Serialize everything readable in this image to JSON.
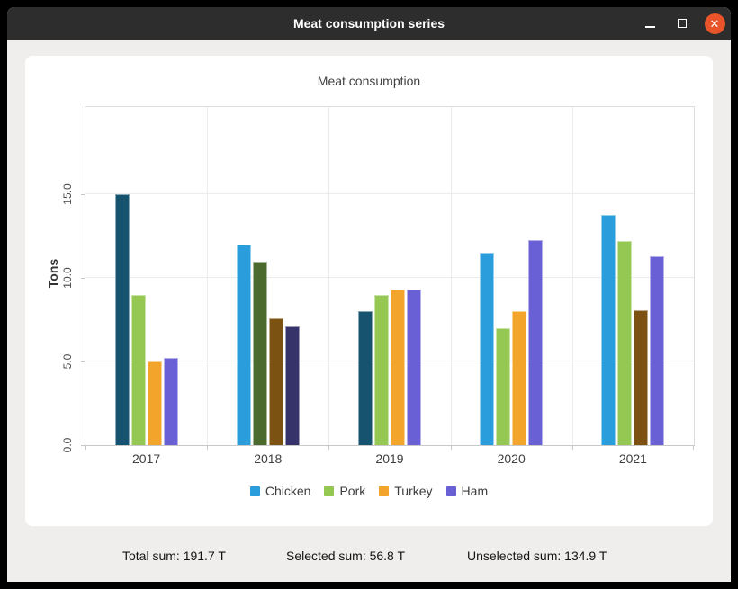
{
  "window": {
    "title": "Meat consumption series"
  },
  "chart_data": {
    "type": "bar",
    "title": "Meat consumption",
    "ylabel": "Tons",
    "categories": [
      "2017",
      "2018",
      "2019",
      "2020",
      "2021"
    ],
    "series": [
      {
        "name": "Chicken",
        "color": "#2a9edd",
        "selected_color": "#15536f",
        "values": [
          15.0,
          12.0,
          8.0,
          11.5,
          13.8
        ],
        "selected": [
          true,
          false,
          true,
          false,
          false
        ]
      },
      {
        "name": "Pork",
        "color": "#94c853",
        "selected_color": "#4b6a2e",
        "values": [
          9.0,
          11.0,
          9.0,
          7.0,
          12.2
        ],
        "selected": [
          false,
          true,
          false,
          false,
          false
        ]
      },
      {
        "name": "Turkey",
        "color": "#f3a42a",
        "selected_color": "#7c5213",
        "values": [
          5.0,
          7.6,
          9.3,
          8.0,
          8.1
        ],
        "selected": [
          false,
          true,
          false,
          false,
          true
        ]
      },
      {
        "name": "Ham",
        "color": "#6a60d5",
        "selected_color": "#36336a",
        "values": [
          5.2,
          7.1,
          9.3,
          12.3,
          11.3
        ],
        "selected": [
          false,
          true,
          false,
          false,
          false
        ]
      }
    ],
    "yticks": [
      {
        "v": 0,
        "label": "0.0"
      },
      {
        "v": 5,
        "label": "5.0"
      },
      {
        "v": 10,
        "label": "10.0"
      },
      {
        "v": 15,
        "label": "15.0"
      }
    ],
    "ylim": [
      0,
      20.25
    ],
    "grid": true,
    "legend_position": "bottom"
  },
  "sums": {
    "total": "Total sum: 191.7 T",
    "selected": "Selected sum: 56.8 T",
    "unselected": "Unselected sum: 134.9 T"
  }
}
